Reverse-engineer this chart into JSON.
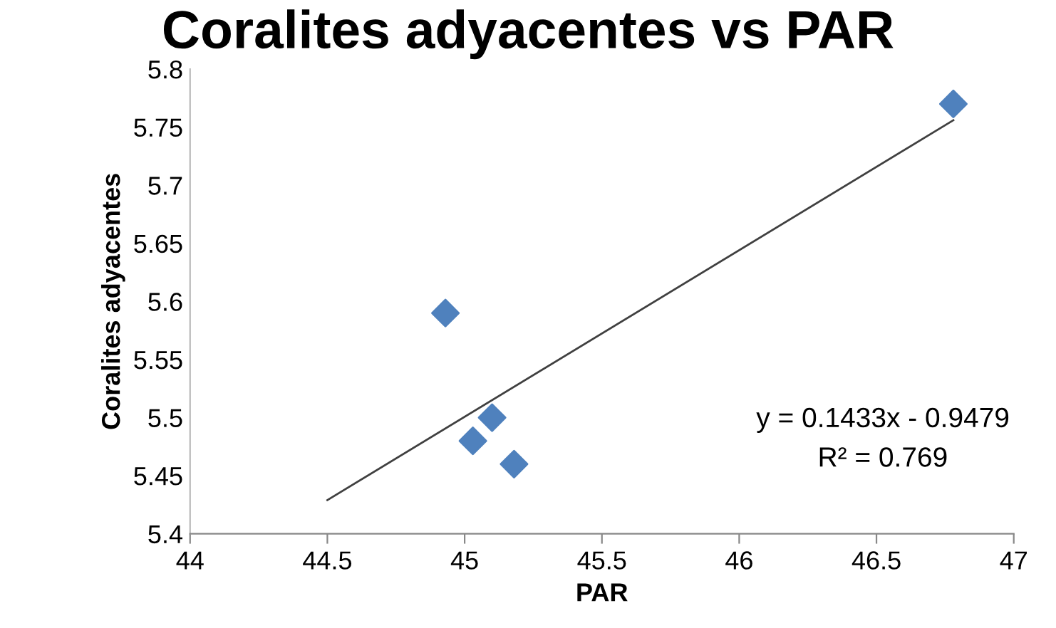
{
  "chart_data": {
    "type": "scatter",
    "title": "Coralites adyacentes vs PAR",
    "xlabel": "PAR",
    "ylabel": "Coralites adyacentes",
    "series": [
      {
        "color": "#4f81bd",
        "marker": "diamond",
        "x": [
          44.93,
          45.03,
          45.1,
          45.18,
          46.78
        ],
        "values": [
          5.59,
          5.48,
          5.5,
          5.46,
          5.77
        ]
      },
      {
        "type": "line",
        "color": "#404040",
        "marker": "none",
        "x": [
          44.5,
          46.78
        ],
        "values": [
          5.429,
          5.756
        ]
      }
    ],
    "annotations": [
      "y = 0.1433x - 0.9479",
      "R² = 0.769"
    ],
    "xlim": [
      44,
      47
    ],
    "xticks": [
      44,
      44.5,
      45,
      45.5,
      46,
      46.5,
      47
    ],
    "ylim": [
      5.4,
      5.8
    ],
    "yticks": [
      5.4,
      5.45,
      5.5,
      5.55,
      5.6,
      5.65,
      5.7,
      5.75,
      5.8
    ],
    "grid": false,
    "legend": false
  }
}
